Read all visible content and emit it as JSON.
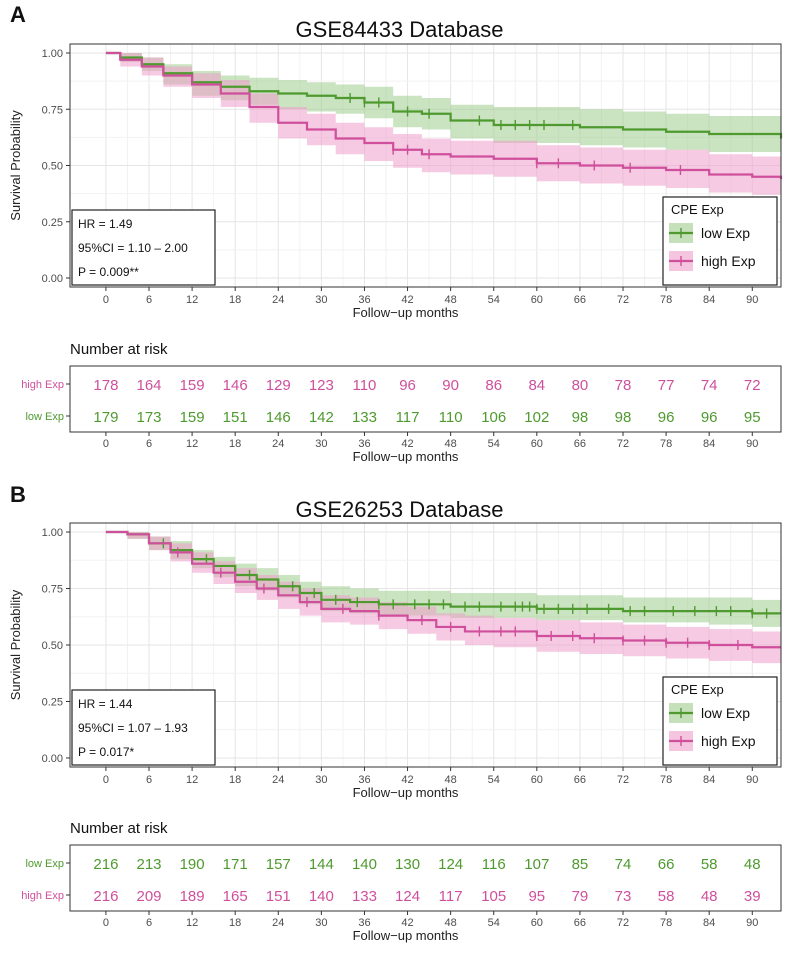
{
  "colors": {
    "low": "#4e9a2f",
    "high": "#cf4f9c",
    "low_band": "#9fcc8c",
    "high_band": "#ef9fca",
    "grid": "#e5e5e5",
    "panel_bg": "#ffffff"
  },
  "chart_data": [
    {
      "type": "line",
      "letter": "A",
      "title": "GSE84433 Database",
      "xlabel": "Follow−up months",
      "ylabel": "Survival Probability",
      "xlim": [
        -5,
        94
      ],
      "ylim": [
        -0.04,
        1.04
      ],
      "xticks": [
        0,
        6,
        12,
        18,
        24,
        30,
        36,
        42,
        48,
        54,
        60,
        66,
        72,
        78,
        84,
        90
      ],
      "yticks": [
        0.0,
        0.25,
        0.5,
        0.75,
        1.0
      ],
      "ytick_labels": [
        "0.00",
        "0.25",
        "0.50",
        "0.75",
        "1.00"
      ],
      "grid": true,
      "legend": {
        "title": "CPE Exp",
        "placement": "bottom-right",
        "items": [
          "low Exp",
          "high Exp"
        ]
      },
      "stats": [
        "HR = 1.49",
        "95%CI = 1.10 – 2.00",
        "P = 0.009**"
      ],
      "series": [
        {
          "name": "low Exp",
          "color": "low",
          "x": [
            0,
            2,
            5,
            8,
            12,
            16,
            20,
            24,
            28,
            32,
            36,
            40,
            44,
            48,
            54,
            60,
            66,
            72,
            78,
            84,
            90,
            94
          ],
          "y": [
            1.0,
            0.98,
            0.95,
            0.91,
            0.87,
            0.85,
            0.83,
            0.82,
            0.81,
            0.8,
            0.78,
            0.74,
            0.73,
            0.7,
            0.68,
            0.68,
            0.67,
            0.66,
            0.65,
            0.64,
            0.64,
            0.62
          ],
          "lo": [
            1.0,
            0.96,
            0.92,
            0.86,
            0.81,
            0.79,
            0.77,
            0.75,
            0.74,
            0.73,
            0.71,
            0.67,
            0.66,
            0.62,
            0.6,
            0.6,
            0.59,
            0.58,
            0.57,
            0.56,
            0.56,
            0.53
          ],
          "hi": [
            1.0,
            1.0,
            0.98,
            0.95,
            0.92,
            0.9,
            0.89,
            0.88,
            0.87,
            0.86,
            0.85,
            0.81,
            0.8,
            0.77,
            0.76,
            0.76,
            0.75,
            0.74,
            0.73,
            0.72,
            0.72,
            0.71
          ],
          "censor_x": [
            34,
            36,
            38,
            42,
            45,
            52,
            55,
            57,
            59,
            61,
            65
          ]
        },
        {
          "name": "high Exp",
          "color": "high",
          "x": [
            0,
            2,
            5,
            8,
            12,
            16,
            20,
            24,
            28,
            32,
            36,
            40,
            44,
            48,
            54,
            60,
            66,
            72,
            78,
            84,
            90,
            94
          ],
          "y": [
            1.0,
            0.97,
            0.94,
            0.9,
            0.86,
            0.82,
            0.76,
            0.69,
            0.66,
            0.62,
            0.6,
            0.57,
            0.55,
            0.54,
            0.53,
            0.51,
            0.5,
            0.49,
            0.48,
            0.46,
            0.45,
            0.44
          ],
          "lo": [
            1.0,
            0.94,
            0.9,
            0.85,
            0.8,
            0.76,
            0.69,
            0.62,
            0.59,
            0.55,
            0.52,
            0.49,
            0.47,
            0.46,
            0.45,
            0.43,
            0.42,
            0.41,
            0.4,
            0.38,
            0.37,
            0.35
          ],
          "hi": [
            1.0,
            1.0,
            0.98,
            0.94,
            0.91,
            0.88,
            0.82,
            0.76,
            0.73,
            0.69,
            0.67,
            0.64,
            0.62,
            0.61,
            0.61,
            0.59,
            0.58,
            0.57,
            0.57,
            0.55,
            0.54,
            0.53
          ],
          "censor_x": [
            40,
            42,
            45,
            60,
            63,
            68,
            73,
            80
          ]
        }
      ],
      "risk_table": {
        "title": "Number at risk",
        "xlabel": "Follow−up months",
        "rows": [
          {
            "label": "high Exp",
            "color": "high",
            "values": [
              178,
              164,
              159,
              146,
              129,
              123,
              110,
              96,
              90,
              86,
              84,
              80,
              78,
              77,
              74,
              72
            ]
          },
          {
            "label": "low Exp",
            "color": "low",
            "values": [
              179,
              173,
              159,
              151,
              146,
              142,
              133,
              117,
              110,
              106,
              102,
              98,
              98,
              96,
              96,
              95
            ]
          }
        ]
      }
    },
    {
      "type": "line",
      "letter": "B",
      "title": "GSE26253 Database",
      "xlabel": "Follow−up months",
      "ylabel": "Survival Probability",
      "xlim": [
        -5,
        94
      ],
      "ylim": [
        -0.04,
        1.04
      ],
      "xticks": [
        0,
        6,
        12,
        18,
        24,
        30,
        36,
        42,
        48,
        54,
        60,
        66,
        72,
        78,
        84,
        90
      ],
      "yticks": [
        0.0,
        0.25,
        0.5,
        0.75,
        1.0
      ],
      "ytick_labels": [
        "0.00",
        "0.25",
        "0.50",
        "0.75",
        "1.00"
      ],
      "grid": true,
      "legend": {
        "title": "CPE Exp",
        "placement": "bottom-right",
        "items": [
          "low Exp",
          "high Exp"
        ]
      },
      "stats": [
        "HR = 1.44",
        "95%CI = 1.07 – 1.93",
        "P = 0.017*"
      ],
      "series": [
        {
          "name": "low Exp",
          "color": "low",
          "x": [
            0,
            3,
            6,
            9,
            12,
            15,
            18,
            21,
            24,
            27,
            30,
            34,
            38,
            42,
            48,
            54,
            60,
            66,
            72,
            78,
            84,
            90,
            94
          ],
          "y": [
            1.0,
            0.99,
            0.95,
            0.92,
            0.88,
            0.85,
            0.81,
            0.79,
            0.76,
            0.73,
            0.7,
            0.69,
            0.68,
            0.68,
            0.67,
            0.67,
            0.66,
            0.66,
            0.65,
            0.65,
            0.65,
            0.64,
            0.64
          ],
          "lo": [
            1.0,
            0.97,
            0.92,
            0.88,
            0.84,
            0.8,
            0.76,
            0.74,
            0.71,
            0.68,
            0.65,
            0.64,
            0.63,
            0.63,
            0.62,
            0.62,
            0.61,
            0.61,
            0.6,
            0.6,
            0.59,
            0.58,
            0.58
          ],
          "hi": [
            1.0,
            1.0,
            0.98,
            0.96,
            0.92,
            0.89,
            0.86,
            0.84,
            0.81,
            0.78,
            0.76,
            0.75,
            0.74,
            0.74,
            0.73,
            0.73,
            0.72,
            0.72,
            0.71,
            0.71,
            0.71,
            0.7,
            0.7
          ],
          "censor_x": [
            8,
            14,
            20,
            26,
            29,
            32,
            35,
            38,
            40,
            43,
            45,
            47,
            50,
            52,
            55,
            57,
            58,
            59,
            60,
            61,
            63,
            65,
            67,
            70,
            73,
            75,
            79,
            82,
            85,
            87,
            90,
            92
          ]
        },
        {
          "name": "high Exp",
          "color": "high",
          "x": [
            0,
            3,
            6,
            9,
            12,
            15,
            18,
            21,
            24,
            27,
            30,
            34,
            38,
            42,
            46,
            50,
            54,
            60,
            66,
            72,
            78,
            84,
            90,
            94
          ],
          "y": [
            1.0,
            0.99,
            0.95,
            0.91,
            0.86,
            0.82,
            0.78,
            0.75,
            0.72,
            0.69,
            0.66,
            0.65,
            0.63,
            0.61,
            0.58,
            0.56,
            0.56,
            0.54,
            0.53,
            0.52,
            0.51,
            0.5,
            0.49,
            0.49
          ],
          "lo": [
            1.0,
            0.97,
            0.92,
            0.87,
            0.82,
            0.77,
            0.73,
            0.7,
            0.66,
            0.63,
            0.6,
            0.59,
            0.57,
            0.55,
            0.52,
            0.5,
            0.49,
            0.47,
            0.46,
            0.45,
            0.44,
            0.43,
            0.42,
            0.41
          ],
          "hi": [
            1.0,
            1.0,
            0.98,
            0.95,
            0.91,
            0.87,
            0.84,
            0.81,
            0.78,
            0.75,
            0.72,
            0.71,
            0.69,
            0.67,
            0.64,
            0.63,
            0.62,
            0.61,
            0.6,
            0.59,
            0.58,
            0.57,
            0.56,
            0.56
          ],
          "censor_x": [
            10,
            16,
            22,
            28,
            33,
            38,
            44,
            48,
            52,
            55,
            57,
            60,
            62,
            65,
            68,
            72,
            75,
            78,
            81,
            84,
            88
          ]
        }
      ],
      "risk_table": {
        "title": "Number at risk",
        "xlabel": "Follow−up months",
        "rows": [
          {
            "label": "low Exp",
            "color": "low",
            "values": [
              216,
              213,
              190,
              171,
              157,
              144,
              140,
              130,
              124,
              116,
              107,
              85,
              74,
              66,
              58,
              48
            ]
          },
          {
            "label": "high Exp",
            "color": "high",
            "values": [
              216,
              209,
              189,
              165,
              151,
              140,
              133,
              124,
              117,
              105,
              95,
              79,
              73,
              58,
              48,
              39
            ]
          }
        ]
      }
    }
  ]
}
